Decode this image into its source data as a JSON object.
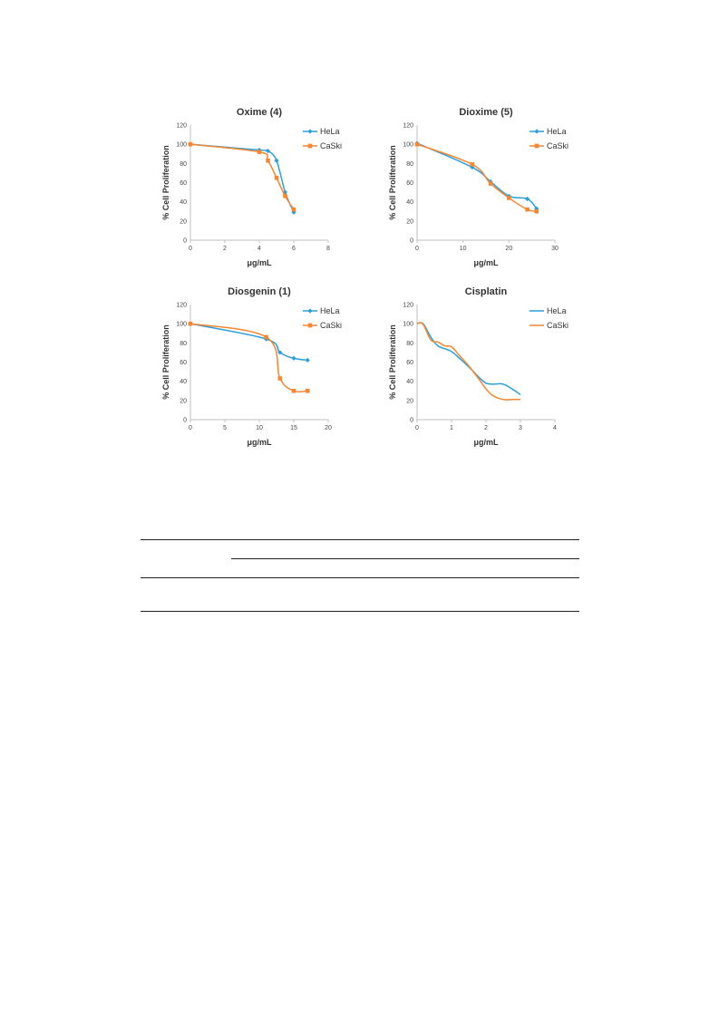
{
  "chart_data": [
    {
      "type": "line",
      "title": "Oxime (4)",
      "xlabel": "μg/mL",
      "ylabel": "% Cell Proliferation",
      "xlim": [
        0,
        8
      ],
      "ylim": [
        0,
        120
      ],
      "xticks": [
        0,
        2,
        4,
        6,
        8
      ],
      "yticks": [
        0,
        20,
        40,
        60,
        80,
        100,
        120
      ],
      "markers": true,
      "legend": "top-right",
      "series": [
        {
          "name": "HeLa",
          "color": "#2e9fd8",
          "x": [
            0,
            4,
            4.5,
            5,
            5.5,
            6
          ],
          "y": [
            100,
            94,
            93,
            83,
            50,
            29
          ]
        },
        {
          "name": "CaSki",
          "color": "#f58632",
          "x": [
            0,
            4,
            4.5,
            5,
            5.5,
            6
          ],
          "y": [
            100,
            92,
            83,
            65,
            46,
            32
          ]
        }
      ]
    },
    {
      "type": "line",
      "title": "Dioxime (5)",
      "xlabel": "μg/mL",
      "ylabel": "% Cell Proliferation",
      "xlim": [
        0,
        30
      ],
      "ylim": [
        0,
        120
      ],
      "xticks": [
        0,
        10,
        20,
        30
      ],
      "yticks": [
        0,
        20,
        40,
        60,
        80,
        100,
        120
      ],
      "markers": true,
      "legend": "top-right",
      "series": [
        {
          "name": "HeLa",
          "color": "#2e9fd8",
          "x": [
            0,
            12,
            16,
            20,
            24,
            26
          ],
          "y": [
            101,
            76,
            61,
            46,
            43,
            33
          ]
        },
        {
          "name": "CaSki",
          "color": "#f58632",
          "x": [
            0,
            12,
            16,
            20,
            24,
            26
          ],
          "y": [
            100,
            79,
            59,
            44,
            32,
            30
          ]
        }
      ]
    },
    {
      "type": "line",
      "title": "Diosgenin (1)",
      "xlabel": "μg/mL",
      "ylabel": "% Cell Proliferation",
      "xlim": [
        0,
        20
      ],
      "ylim": [
        0,
        120
      ],
      "xticks": [
        0,
        5,
        10,
        15,
        20
      ],
      "yticks": [
        0,
        20,
        40,
        60,
        80,
        100,
        120
      ],
      "markers": true,
      "legend": "top-right",
      "series": [
        {
          "name": "HeLa",
          "color": "#2e9fd8",
          "x": [
            0,
            11,
            13,
            15,
            17
          ],
          "y": [
            100,
            84,
            70,
            64,
            62
          ]
        },
        {
          "name": "CaSki",
          "color": "#f58632",
          "x": [
            0,
            11,
            13,
            15,
            17
          ],
          "y": [
            100,
            86,
            43,
            30,
            30
          ]
        }
      ]
    },
    {
      "type": "line",
      "title": "Cisplatin",
      "xlabel": "μg/mL",
      "ylabel": "% Cell Proliferation",
      "xlim": [
        0,
        4
      ],
      "ylim": [
        0,
        120
      ],
      "xticks": [
        0,
        1,
        2,
        3,
        4
      ],
      "yticks": [
        0,
        20,
        40,
        60,
        80,
        100,
        120
      ],
      "markers": false,
      "legend": "top-right",
      "series": [
        {
          "name": "HeLa",
          "color": "#2e9fd8",
          "x": [
            0,
            0.1,
            0.2,
            0.4,
            0.6,
            0.8,
            1.0,
            1.2,
            1.5,
            1.8,
            2.0,
            2.2,
            2.5,
            2.8,
            3.0
          ],
          "y": [
            100,
            101,
            99,
            86,
            77,
            74,
            71,
            65,
            55,
            44,
            38,
            37,
            37,
            31,
            26
          ]
        },
        {
          "name": "CaSki",
          "color": "#f58632",
          "x": [
            0,
            0.1,
            0.2,
            0.4,
            0.6,
            0.8,
            1.0,
            1.2,
            1.5,
            1.8,
            2.0,
            2.2,
            2.5,
            2.8,
            3.0
          ],
          "y": [
            100,
            101,
            98,
            83,
            81,
            77,
            76,
            68,
            56,
            42,
            32,
            25,
            21,
            21,
            21
          ]
        }
      ]
    }
  ]
}
